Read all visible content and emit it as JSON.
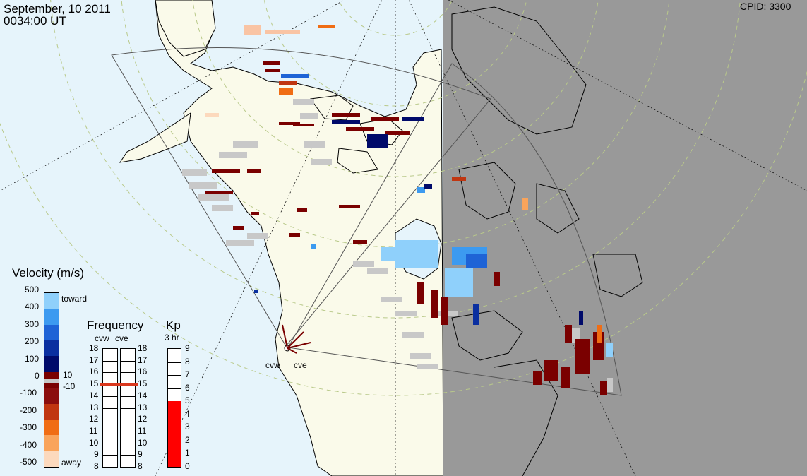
{
  "header": {
    "date": "September, 10 2011",
    "time": "0034:00 UT",
    "cpid": "CPID:  3300"
  },
  "radar_sites": {
    "west": "cvw",
    "east": "cve"
  },
  "velocity_scale": {
    "title": "Velocity (m/s)",
    "ticks": [
      "500",
      "400",
      "300",
      "200",
      "100",
      "0",
      "-100",
      "-200",
      "-300",
      "-400",
      "-500"
    ],
    "toward_label": "toward",
    "away_label": "away",
    "ground_scatter_upper": "10",
    "ground_scatter_lower": "-10",
    "colors": [
      "#fcd9bd",
      "#f9a45b",
      "#f06d14",
      "#c03611",
      "#8b0e0e",
      "#7a0000",
      "#000a6a",
      "#0a2fa0",
      "#1e63d6",
      "#3c9af0",
      "#8fd0fb"
    ]
  },
  "frequency_panel": {
    "title": "Frequency",
    "radars": [
      "cvw",
      "cve"
    ],
    "ticks": [
      "18",
      "17",
      "16",
      "15",
      "14",
      "13",
      "12",
      "11",
      "10",
      "9",
      "8"
    ],
    "cvw_value": 15,
    "cve_value": 15
  },
  "kp_panel": {
    "title": "Kp",
    "subtitle": "3 hr",
    "ticks": [
      "9",
      "8",
      "7",
      "6",
      "5",
      "4",
      "3",
      "2",
      "1",
      "0"
    ],
    "value": 5,
    "fill_color": "#ff0000"
  },
  "map_colors": {
    "ocean": "#e6f4fb",
    "land": "#fafaea",
    "night": "#999999",
    "ground_scatter": "#c8c8c8"
  }
}
